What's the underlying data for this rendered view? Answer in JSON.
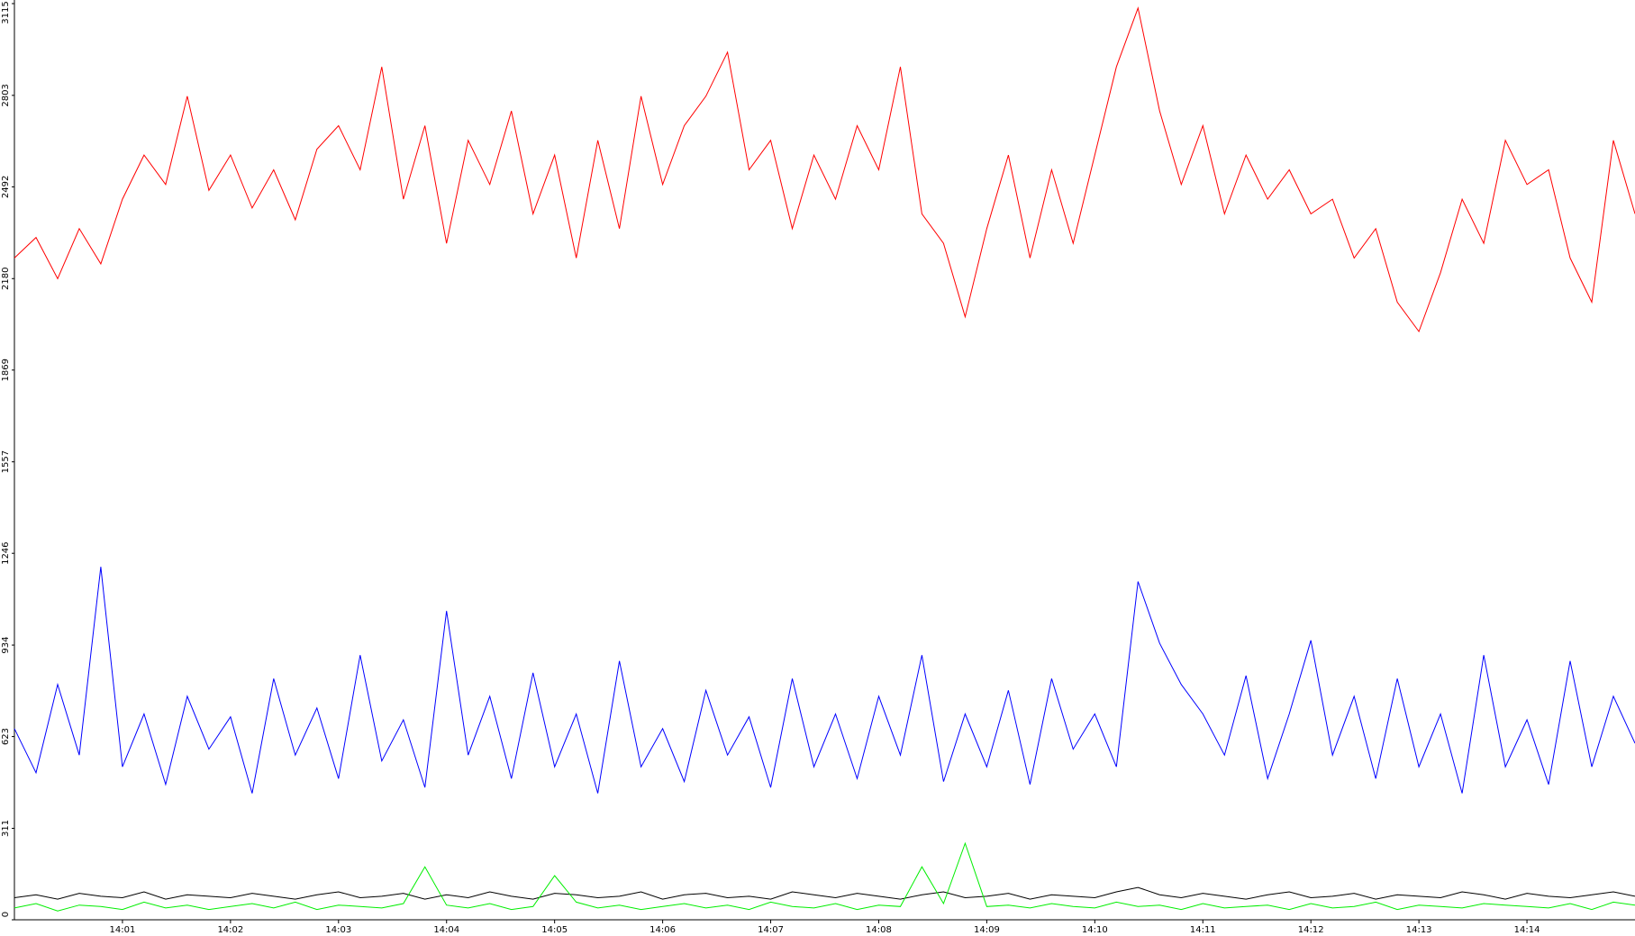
{
  "chart_data": {
    "type": "line",
    "x": [
      0,
      0.2,
      0.4,
      0.6,
      0.8,
      1.0,
      1.2,
      1.4,
      1.6,
      1.8,
      2.0,
      2.2,
      2.4,
      2.6,
      2.8,
      3.0,
      3.2,
      3.4,
      3.6,
      3.8,
      4.0,
      4.2,
      4.4,
      4.6,
      4.8,
      5.0,
      5.2,
      5.4,
      5.6,
      5.8,
      6.0,
      6.2,
      6.4,
      6.6,
      6.8,
      7.0,
      7.2,
      7.4,
      7.6,
      7.8,
      8.0,
      8.2,
      8.4,
      8.6,
      8.8,
      9.0,
      9.2,
      9.4,
      9.6,
      9.8,
      10.0,
      10.2,
      10.4,
      10.6,
      10.8,
      11.0,
      11.2,
      11.4,
      11.6,
      11.8,
      12.0,
      12.2,
      12.4,
      12.6,
      12.8,
      13.0,
      13.2,
      13.4,
      13.6,
      13.8,
      14.0,
      14.2,
      14.4,
      14.6,
      14.8,
      15.0
    ],
    "series": [
      {
        "color": "#ff0000",
        "values": [
          2250,
          2320,
          2180,
          2350,
          2230,
          2450,
          2600,
          2500,
          2800,
          2480,
          2600,
          2420,
          2550,
          2380,
          2620,
          2700,
          2550,
          2900,
          2450,
          2700,
          2300,
          2650,
          2500,
          2750,
          2400,
          2600,
          2250,
          2650,
          2350,
          2800,
          2500,
          2700,
          2800,
          2950,
          2550,
          2650,
          2350,
          2600,
          2450,
          2700,
          2550,
          2900,
          2400,
          2300,
          2050,
          2350,
          2600,
          2250,
          2550,
          2300,
          2600,
          2900,
          3100,
          2750,
          2500,
          2700,
          2400,
          2600,
          2450,
          2550,
          2400,
          2450,
          2250,
          2350,
          2100,
          2000,
          2200,
          2450,
          2300,
          2650,
          2500,
          2550,
          2250,
          2100,
          2650,
          2400
        ]
      },
      {
        "color": "#0000ff",
        "values": [
          650,
          500,
          800,
          560,
          1200,
          520,
          700,
          460,
          760,
          580,
          690,
          430,
          820,
          560,
          720,
          480,
          900,
          540,
          680,
          450,
          1050,
          560,
          760,
          480,
          840,
          520,
          700,
          430,
          880,
          520,
          650,
          470,
          780,
          560,
          690,
          450,
          820,
          520,
          700,
          480,
          760,
          560,
          900,
          470,
          700,
          520,
          780,
          460,
          820,
          580,
          700,
          520,
          1150,
          940,
          800,
          700,
          560,
          830,
          480,
          700,
          950,
          560,
          760,
          480,
          820,
          520,
          700,
          430,
          900,
          520,
          680,
          460,
          880,
          520,
          760,
          600
        ]
      },
      {
        "color": "#000000",
        "values": [
          75,
          85,
          70,
          90,
          80,
          75,
          95,
          70,
          85,
          80,
          75,
          90,
          80,
          70,
          85,
          95,
          75,
          80,
          90,
          70,
          85,
          75,
          95,
          80,
          70,
          90,
          85,
          75,
          80,
          95,
          70,
          85,
          90,
          75,
          80,
          70,
          95,
          85,
          75,
          90,
          80,
          70,
          85,
          95,
          75,
          80,
          90,
          70,
          85,
          80,
          75,
          95,
          110,
          85,
          75,
          90,
          80,
          70,
          85,
          95,
          75,
          80,
          90,
          70,
          85,
          80,
          75,
          95,
          85,
          70,
          90,
          80,
          75,
          85,
          95,
          80
        ]
      },
      {
        "color": "#00ee00",
        "values": [
          40,
          55,
          30,
          50,
          45,
          35,
          60,
          40,
          50,
          35,
          45,
          55,
          40,
          60,
          35,
          50,
          45,
          40,
          55,
          180,
          50,
          40,
          55,
          35,
          45,
          150,
          60,
          40,
          50,
          35,
          45,
          55,
          40,
          50,
          35,
          60,
          45,
          40,
          55,
          35,
          50,
          45,
          180,
          55,
          260,
          45,
          50,
          40,
          55,
          45,
          40,
          60,
          45,
          50,
          35,
          55,
          40,
          45,
          50,
          35,
          55,
          40,
          45,
          60,
          35,
          50,
          45,
          40,
          55,
          50,
          45,
          40,
          55,
          35,
          60,
          50
        ]
      }
    ],
    "xlim": [
      0,
      15
    ],
    "xticks": [
      {
        "value": 1,
        "label": "14:01"
      },
      {
        "value": 2,
        "label": "14:02"
      },
      {
        "value": 3,
        "label": "14:03"
      },
      {
        "value": 4,
        "label": "14:04"
      },
      {
        "value": 5,
        "label": "14:05"
      },
      {
        "value": 6,
        "label": "14:06"
      },
      {
        "value": 7,
        "label": "14:07"
      },
      {
        "value": 8,
        "label": "14:08"
      },
      {
        "value": 9,
        "label": "14:09"
      },
      {
        "value": 10,
        "label": "14:10"
      },
      {
        "value": 11,
        "label": "14:11"
      },
      {
        "value": 12,
        "label": "14:12"
      },
      {
        "value": 13,
        "label": "14:13"
      },
      {
        "value": 14,
        "label": "14:14"
      }
    ],
    "ylim": [
      0,
      3115
    ],
    "yticks": [
      0,
      311,
      623,
      934,
      1246,
      1557,
      1869,
      2180,
      2492,
      2803,
      3115
    ]
  }
}
